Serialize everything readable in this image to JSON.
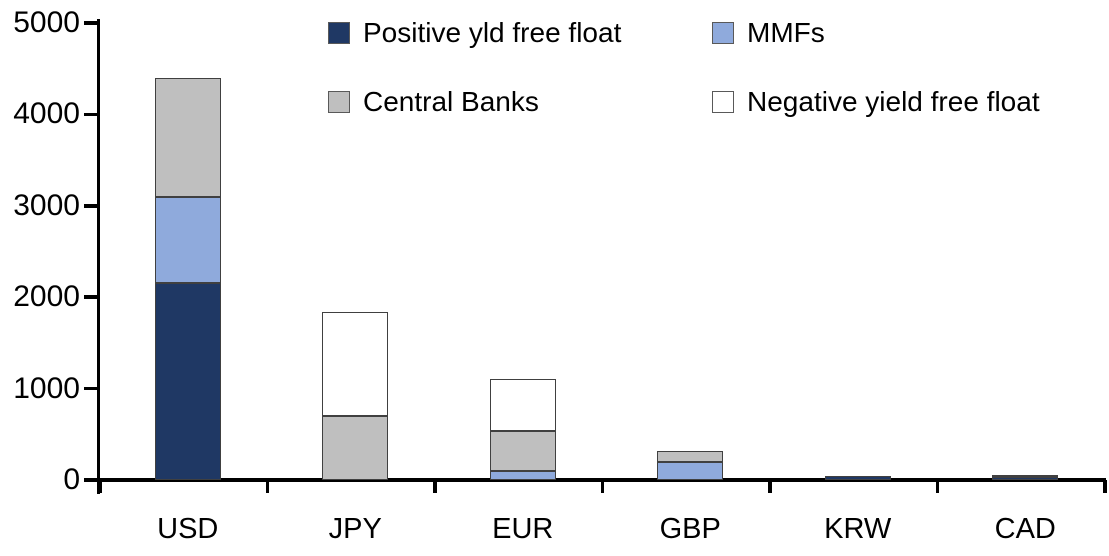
{
  "chart_data": {
    "type": "bar",
    "stacked": true,
    "title": "",
    "categories": [
      "USD",
      "JPY",
      "EUR",
      "GBP",
      "KRW",
      "CAD"
    ],
    "series": [
      {
        "name": "Positive yld free float",
        "color": "#1F3864",
        "values": [
          2150,
          0,
          0,
          0,
          40,
          30
        ]
      },
      {
        "name": "MMFs",
        "color": "#8FAADC",
        "values": [
          950,
          0,
          100,
          200,
          0,
          0
        ]
      },
      {
        "name": "Central Banks",
        "color": "#BFBFBF",
        "values": [
          1300,
          700,
          440,
          120,
          0,
          30
        ]
      },
      {
        "name": "Negative yield free float",
        "color": "#FFFFFF",
        "values": [
          0,
          1140,
          560,
          0,
          0,
          0
        ]
      }
    ],
    "stack_totals": [
      4400,
      1840,
      1100,
      320,
      40,
      60
    ],
    "xlabel": "",
    "ylabel": "",
    "ylim": [
      0,
      5000
    ],
    "yticks": [
      0,
      1000,
      2000,
      3000,
      4000,
      5000
    ],
    "grid": false,
    "legend_position": "top-inside",
    "legend_columns": 2,
    "bar_border_color": "#404040",
    "axis_color": "#000000",
    "background_color": "#FFFFFF"
  }
}
